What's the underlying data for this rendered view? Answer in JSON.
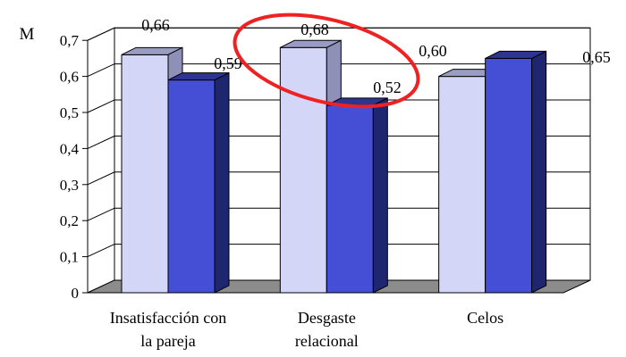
{
  "chart_data": {
    "type": "bar",
    "style": "3d-clustered-column",
    "ylabel": "M",
    "ylim": [
      0,
      0.7
    ],
    "yticks": [
      "0",
      "0,1",
      "0,2",
      "0,3",
      "0,4",
      "0,5",
      "0,6",
      "0,7"
    ],
    "grid": true,
    "categories": [
      [
        "Insatisfacción con",
        "la pareja"
      ],
      [
        "Desgaste",
        "relacional"
      ],
      [
        "Celos"
      ]
    ],
    "series": [
      {
        "values": [
          0.66,
          0.68,
          0.6
        ],
        "labels": [
          "0,66",
          "0,68",
          "0,60"
        ],
        "color": "#d4d6f8"
      },
      {
        "values": [
          0.59,
          0.52,
          0.65
        ],
        "labels": [
          "0,59",
          "0,52",
          "0,65"
        ],
        "color": "#444fd6"
      }
    ],
    "annotation": {
      "shape": "ellipse",
      "color": "#ee2222",
      "target_category": 1
    }
  }
}
